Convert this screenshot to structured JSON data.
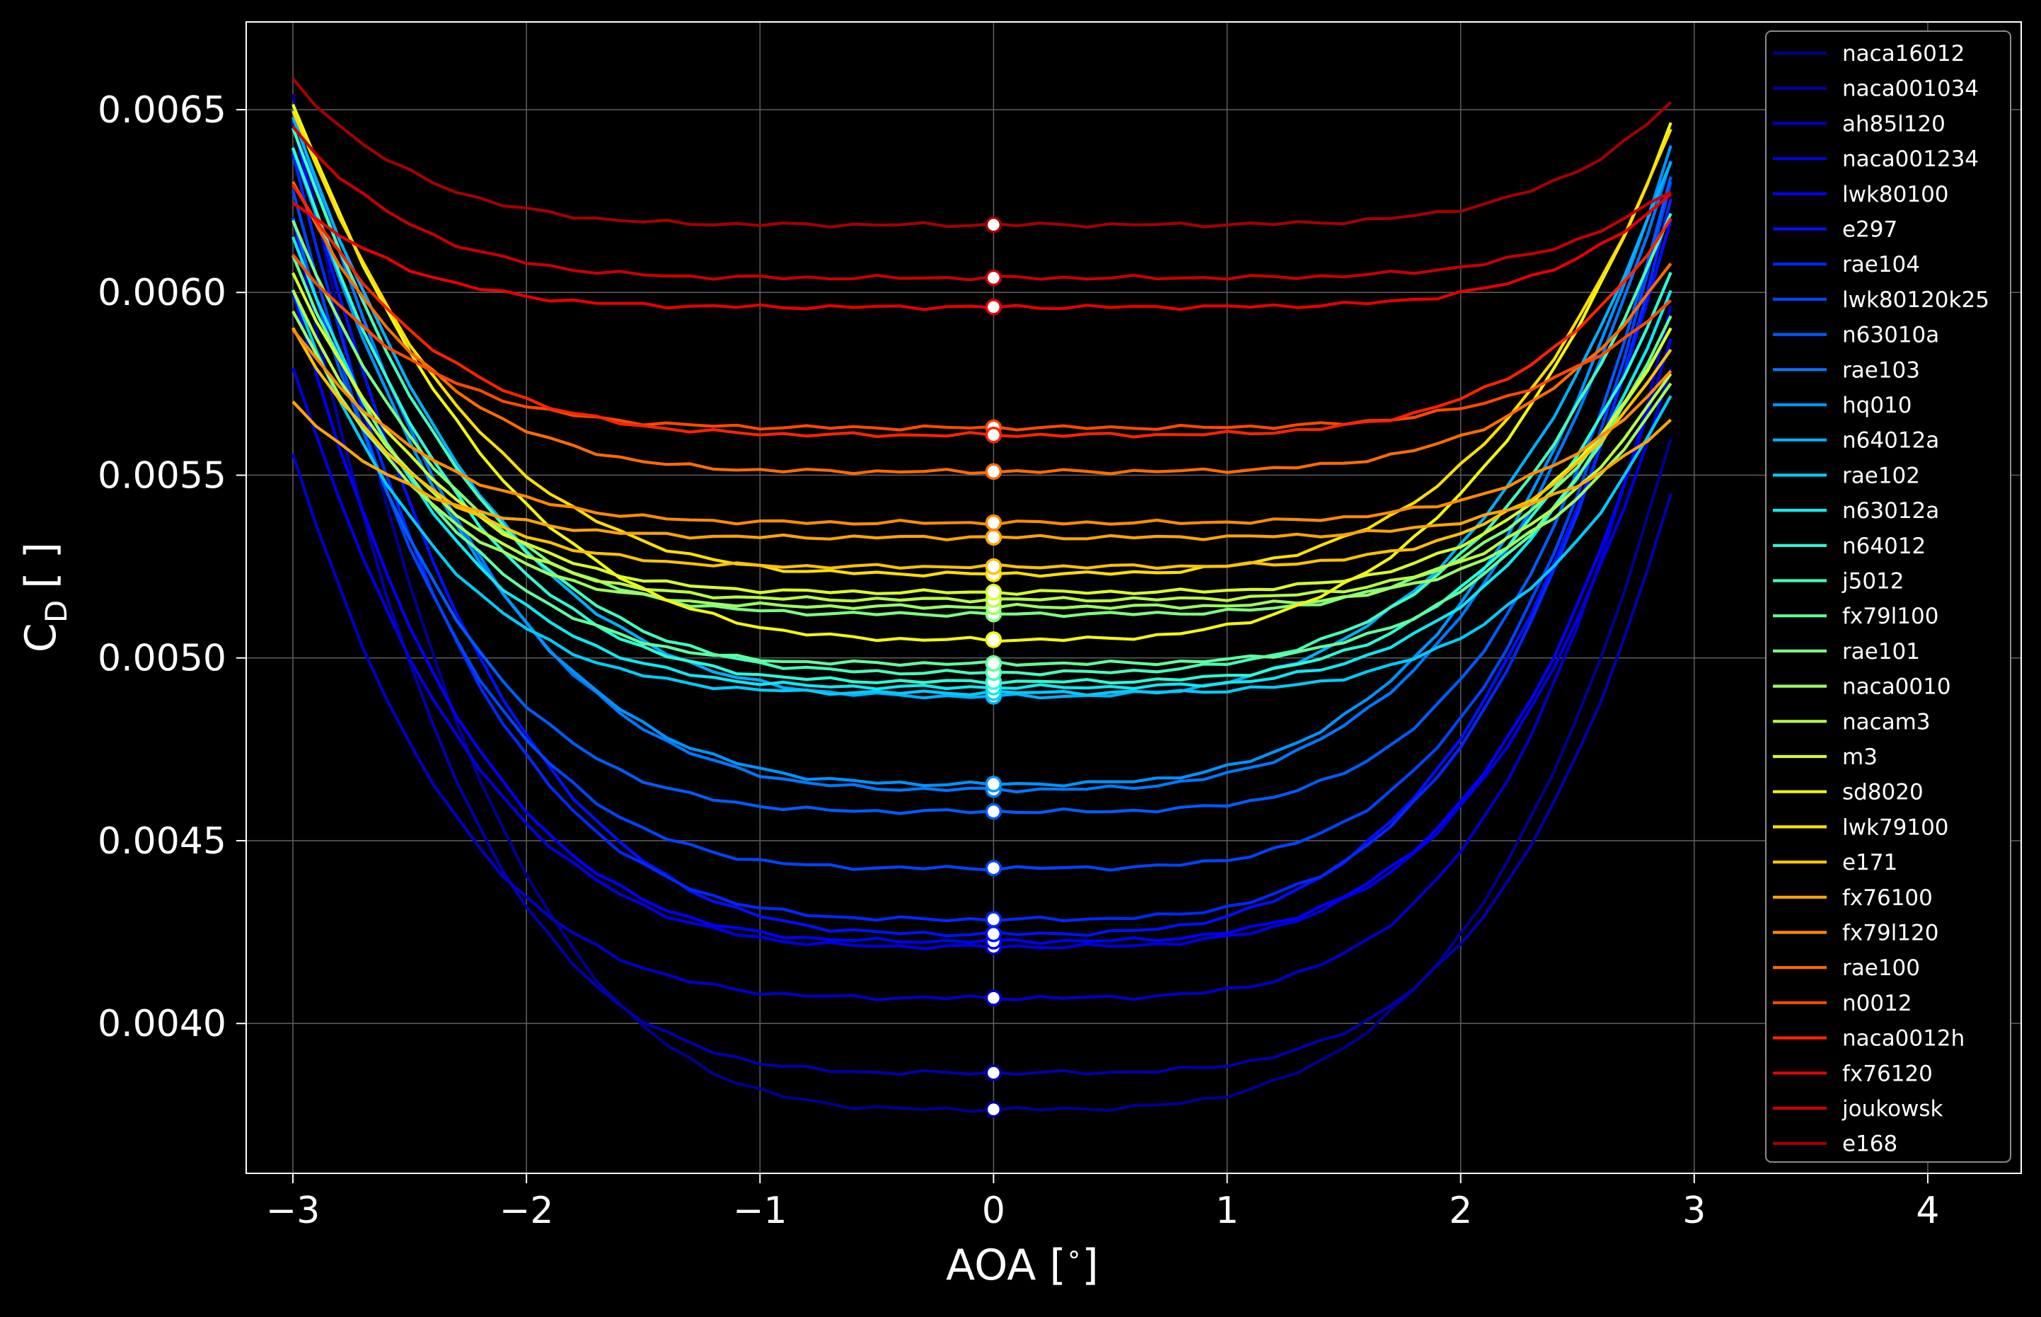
{
  "chart_data": {
    "type": "line",
    "xlabel": "AOA [",
    "xlabel_unit": "∘",
    "xlabel_close": "]",
    "ylabel_main": "C",
    "ylabel_sub": "D",
    "ylabel_unit": "[ ]",
    "xlim": [
      -3.2,
      4.4
    ],
    "ylim": [
      0.00359,
      0.00674
    ],
    "xticks": [
      -3,
      -2,
      -1,
      0,
      1,
      2,
      3,
      4
    ],
    "xtick_labels": [
      "−3",
      "−2",
      "−1",
      "0",
      "1",
      "2",
      "3",
      "4"
    ],
    "yticks": [
      0.004,
      0.0045,
      0.005,
      0.0055,
      0.006,
      0.0065
    ],
    "ytick_labels": [
      "0.0040",
      "0.0045",
      "0.0050",
      "0.0055",
      "0.0060",
      "0.0065"
    ],
    "grid": true,
    "legend_position": "top-right",
    "background": "#000000",
    "x_range": [
      -3.0,
      2.9
    ],
    "markers_at_x": 0,
    "series": [
      {
        "name": "naca16012",
        "color": "#00008f",
        "left": 0.00654,
        "min": 0.003765,
        "right": 0.0056,
        "width": 1.15
      },
      {
        "name": "naca001034",
        "color": "#0000aa",
        "left": 0.0062,
        "min": 0.003865,
        "right": 0.00545,
        "width": 1.45
      },
      {
        "name": "ah85l120",
        "color": "#0000c4",
        "left": 0.00556,
        "min": 0.00407,
        "right": 0.00596,
        "width": 1.55
      },
      {
        "name": "naca001234",
        "color": "#0000dd",
        "left": 0.0058,
        "min": 0.00421,
        "right": 0.00579,
        "width": 1.3
      },
      {
        "name": "lwk80100",
        "color": "#0000f7",
        "left": 0.006,
        "min": 0.004225,
        "right": 0.00588,
        "width": 1.4
      },
      {
        "name": "e297",
        "color": "#0010ff",
        "left": 0.00646,
        "min": 0.004245,
        "right": 0.0062,
        "width": 1.05
      },
      {
        "name": "rae104",
        "color": "#0028ff",
        "left": 0.00638,
        "min": 0.004285,
        "right": 0.00625,
        "width": 1.3
      },
      {
        "name": "lwk80120k25",
        "color": "#0044ff",
        "left": 0.00628,
        "min": 0.004425,
        "right": 0.0063,
        "width": 1.5
      },
      {
        "name": "n63010a",
        "color": "#005cff",
        "left": 0.0062,
        "min": 0.00458,
        "right": 0.00632,
        "width": 1.6
      },
      {
        "name": "rae103",
        "color": "#0078ff",
        "left": 0.0065,
        "min": 0.00464,
        "right": 0.00636,
        "width": 1.05
      },
      {
        "name": "hq010",
        "color": "#0094ff",
        "left": 0.0064,
        "min": 0.004655,
        "right": 0.0064,
        "width": 1.0
      },
      {
        "name": "n64012a",
        "color": "#00b0ff",
        "left": 0.00648,
        "min": 0.004895,
        "right": 0.00636,
        "width": 1.0
      },
      {
        "name": "rae102",
        "color": "#00ccff",
        "left": 0.006,
        "min": 0.004905,
        "right": 0.00572,
        "width": 1.8
      },
      {
        "name": "n63012a",
        "color": "#0ee8f2",
        "left": 0.00615,
        "min": 0.00492,
        "right": 0.006,
        "width": 1.6
      },
      {
        "name": "n64012",
        "color": "#2cffd6",
        "left": 0.0064,
        "min": 0.004935,
        "right": 0.00605,
        "width": 1.4
      },
      {
        "name": "j5012",
        "color": "#46ffba",
        "left": 0.00645,
        "min": 0.00496,
        "right": 0.00622,
        "width": 1.2
      },
      {
        "name": "fx79l100",
        "color": "#62ff9c",
        "left": 0.0061,
        "min": 0.004985,
        "right": 0.00594,
        "width": 1.6
      },
      {
        "name": "rae101",
        "color": "#7eff80",
        "left": 0.0062,
        "min": 0.00512,
        "right": 0.0059,
        "width": 1.7
      },
      {
        "name": "naca0010",
        "color": "#9cff62",
        "left": 0.00595,
        "min": 0.00514,
        "right": 0.00575,
        "width": 2.0
      },
      {
        "name": "nacam3",
        "color": "#b8ff46",
        "left": 0.006,
        "min": 0.00516,
        "right": 0.00578,
        "width": 2.0
      },
      {
        "name": "m3",
        "color": "#d6ff2a",
        "left": 0.00605,
        "min": 0.00518,
        "right": 0.0059,
        "width": 1.9
      },
      {
        "name": "sd8020",
        "color": "#f2f70e",
        "left": 0.00652,
        "min": 0.00505,
        "right": 0.00646,
        "width": 1.0
      },
      {
        "name": "lwk79100",
        "color": "#ffdf00",
        "left": 0.0065,
        "min": 0.00523,
        "right": 0.00645,
        "width": 1.3
      },
      {
        "name": "e171",
        "color": "#ffc200",
        "left": 0.0059,
        "min": 0.00525,
        "right": 0.00585,
        "width": 2.2
      },
      {
        "name": "fx76100",
        "color": "#ffa500",
        "left": 0.0057,
        "min": 0.00533,
        "right": 0.00565,
        "width": 2.4
      },
      {
        "name": "fx79l120",
        "color": "#ff8b00",
        "left": 0.0059,
        "min": 0.00537,
        "right": 0.00578,
        "width": 2.2
      },
      {
        "name": "rae100",
        "color": "#ff6c00",
        "left": 0.0063,
        "min": 0.00551,
        "right": 0.00608,
        "width": 2.0
      },
      {
        "name": "n0012",
        "color": "#ff4a00",
        "left": 0.0061,
        "min": 0.00563,
        "right": 0.00598,
        "width": 2.2
      },
      {
        "name": "naca0012h",
        "color": "#ff2300",
        "left": 0.0063,
        "min": 0.00561,
        "right": 0.0062,
        "width": 2.0
      },
      {
        "name": "fx76120",
        "color": "#e80000",
        "left": 0.00625,
        "min": 0.00596,
        "right": 0.00627,
        "width": 2.6
      },
      {
        "name": "joukowsk",
        "color": "#c70000",
        "left": 0.00645,
        "min": 0.00604,
        "right": 0.00628,
        "width": 2.6
      },
      {
        "name": "e168",
        "color": "#a50000",
        "left": 0.00658,
        "min": 0.006185,
        "right": 0.00652,
        "width": 2.5
      }
    ]
  }
}
